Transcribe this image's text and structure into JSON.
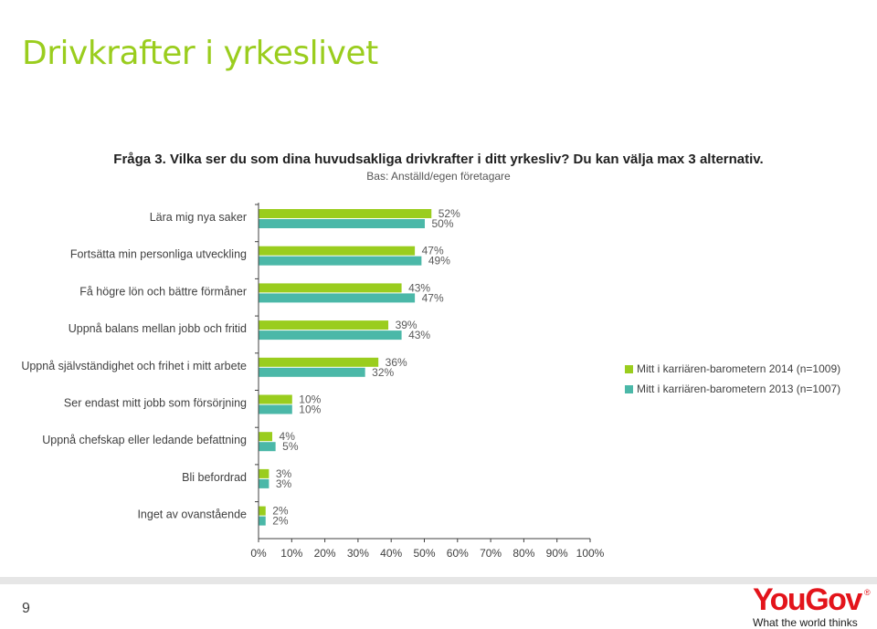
{
  "header": {
    "title": "Drivkrafter  i yrkeslivet",
    "question": "Fråga 3. Vilka ser du som dina huvudsakliga drivkrafter i ditt yrkesliv? Du kan välja max 3 alternativ.",
    "base": "Bas: Anställd/egen företagare"
  },
  "chart_data": {
    "type": "bar",
    "orientation": "horizontal",
    "categories": [
      "Lära mig nya saker",
      "Fortsätta min personliga utveckling",
      "Få högre lön och bättre förmåner",
      "Uppnå balans mellan jobb och fritid",
      "Uppnå självständighet och frihet i mitt arbete",
      "Ser endast mitt jobb som försörjning",
      "Uppnå chefskap eller ledande befattning",
      "Bli befordrad",
      "Inget av ovanstående"
    ],
    "series": [
      {
        "name": "Mitt i karriären-barometern 2014 (n=1009)",
        "color": "#9acd1e",
        "values": [
          52,
          47,
          43,
          39,
          36,
          10,
          4,
          3,
          2
        ]
      },
      {
        "name": "Mitt i karriären-barometern 2013 (n=1007)",
        "color": "#4bb8a8",
        "values": [
          50,
          49,
          47,
          43,
          32,
          10,
          5,
          3,
          2
        ]
      }
    ],
    "value_suffix": "%",
    "xlim": [
      0,
      100
    ],
    "xticks": [
      "0%",
      "10%",
      "20%",
      "30%",
      "40%",
      "50%",
      "60%",
      "70%",
      "80%",
      "90%",
      "100%"
    ],
    "legend_position": "right"
  },
  "footer": {
    "page_number": "9",
    "logo_text": "YouGov",
    "logo_tagline": "What the world thinks"
  }
}
